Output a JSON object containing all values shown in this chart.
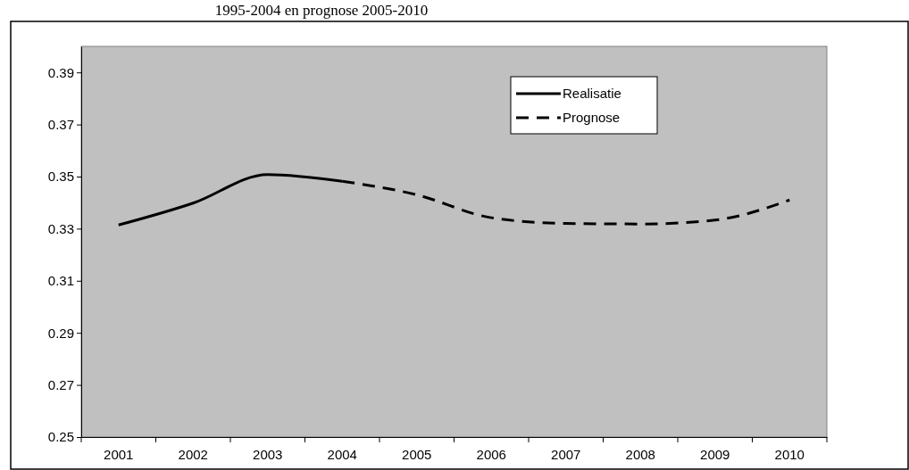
{
  "chart_data": {
    "type": "line",
    "title": "1995-2004 en prognose 2005-2010",
    "categories": [
      "2001",
      "2002",
      "2003",
      "2004",
      "2005",
      "2006",
      "2007",
      "2008",
      "2009",
      "2010"
    ],
    "series": [
      {
        "name": "Realisatie",
        "color": "#000000",
        "line_style": "solid",
        "values": [
          0.3314,
          0.3398,
          0.3508,
          0.3482,
          null,
          null,
          null,
          null,
          null,
          null
        ]
      },
      {
        "name": "Prognose",
        "color": "#000000",
        "line_style": "dashed",
        "values": [
          null,
          null,
          null,
          0.3482,
          0.343,
          0.3342,
          0.332,
          0.3318,
          0.3333,
          0.341
        ]
      }
    ],
    "ylim": [
      0.25,
      0.4
    ],
    "yticks": [
      0.25,
      0.27,
      0.29,
      0.31,
      0.33,
      0.35,
      0.37,
      0.39
    ],
    "grid": false,
    "legend": "top right",
    "marker": "none"
  }
}
